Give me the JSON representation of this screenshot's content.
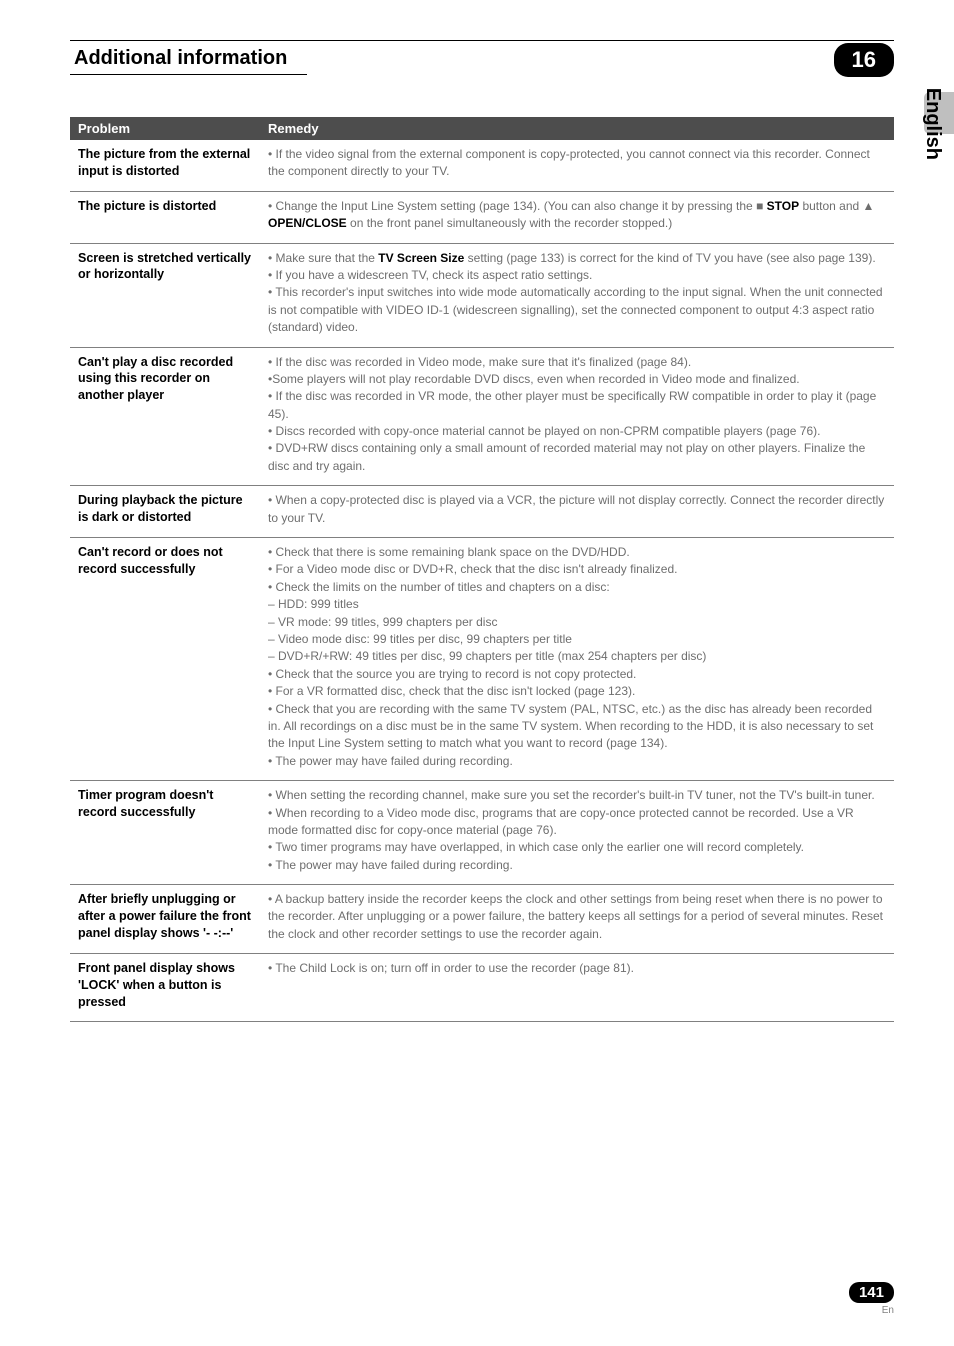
{
  "header": {
    "title": "Additional information",
    "chapter": "16"
  },
  "sidebar": {
    "lang": "English"
  },
  "table": {
    "headers": {
      "problem": "Problem",
      "remedy": "Remedy"
    },
    "rows": [
      {
        "problem": "The picture from the external input is distorted",
        "remedy": "• If the video signal from the external component is copy-protected, you cannot connect via this recorder. Connect the component directly to your TV."
      },
      {
        "problem": "The picture is distorted",
        "remedy": "• Change the Input Line System setting (page 134). (You can also change it by pressing the ■ <span class='blk'>STOP</span> button and ▲ <span class='blk'>OPEN/CLOSE</span> on the front panel simultaneously with the recorder stopped.)"
      },
      {
        "problem": "Screen is stretched vertically or horizontally",
        "remedy": "• Make sure that the <span class='blk'>TV Screen Size</span> setting (page 133) is correct for the kind of TV you have (see also page 139).<br>• If you have a widescreen TV, check its aspect ratio settings.<br>• This recorder's input switches into wide mode automatically according to the input signal. When the unit connected is not compatible with VIDEO ID-1 (widescreen signalling), set the connected component to output 4:3 aspect ratio (standard) video."
      },
      {
        "problem": "Can't play a disc recorded using this recorder on another player",
        "remedy": "• If the disc was recorded in Video mode, make sure that it's finalized (page 84).<br>•Some players will not play recordable DVD discs, even when recorded in Video mode and finalized.<br>• If the disc was recorded in VR mode, the other player must be specifically RW compatible in order to play it (page 45).<br>• Discs recorded with copy-once material cannot be played on non-CPRM compatible players (page 76).<br>• DVD+RW discs containing only a small amount of recorded material may not play on other players. Finalize the disc and try again."
      },
      {
        "problem": "During playback the picture is dark or distorted",
        "remedy": "• When a copy-protected disc is played via a VCR, the picture will not display correctly. Connect the recorder directly to your TV."
      },
      {
        "problem": "Can't record or does not record successfully",
        "remedy": "• Check that there is some remaining blank space on the DVD/HDD.<br>• For a Video mode disc or DVD+R, check that the disc isn't already finalized.<br>• Check the limits on the number of titles and chapters on a disc:<br>– HDD: 999 titles<br>– VR mode: 99 titles, 999 chapters per disc<br>– Video mode disc: 99 titles per disc, 99 chapters per title<br>– DVD+R/+RW: 49 titles per disc, 99 chapters per title (max 254 chapters per disc)<br>• Check that the source you are trying to record is not copy protected.<br>• For a VR formatted disc, check that the disc isn't locked (page 123).<br>• Check that you are recording with the same TV system (PAL, NTSC, etc.) as the disc has already been recorded in. All recordings on a disc must be in the same TV system. When recording to the HDD, it is also necessary to set the Input Line System setting to match what you want to record (page 134).<br>• The power may have failed during recording."
      },
      {
        "problem": "Timer program doesn't record successfully",
        "remedy": "• When setting the recording channel, make sure you set the recorder's built-in TV tuner, not the TV's built-in tuner.<br>• When recording to a Video mode disc, programs that are copy-once protected cannot be recorded. Use a VR mode formatted disc for copy-once material (page 76).<br>• Two timer programs may have overlapped, in which case only the earlier one will record completely.<br>• The power may have failed during recording."
      },
      {
        "problem": "After briefly unplugging or after a power failure the front panel display shows '- -:--'",
        "remedy": "• A backup battery inside the recorder keeps the clock and other settings from being reset when there is no power to the recorder. After unplugging or a power failure, the battery keeps all settings for a period of several minutes. Reset the clock and other recorder settings to use the recorder again."
      },
      {
        "problem": "Front panel display shows 'LOCK' when a button is pressed",
        "remedy": "• The Child Lock is on; turn off in order to use the recorder (page 81)."
      }
    ]
  },
  "footer": {
    "page": "141",
    "lang": "En"
  }
}
